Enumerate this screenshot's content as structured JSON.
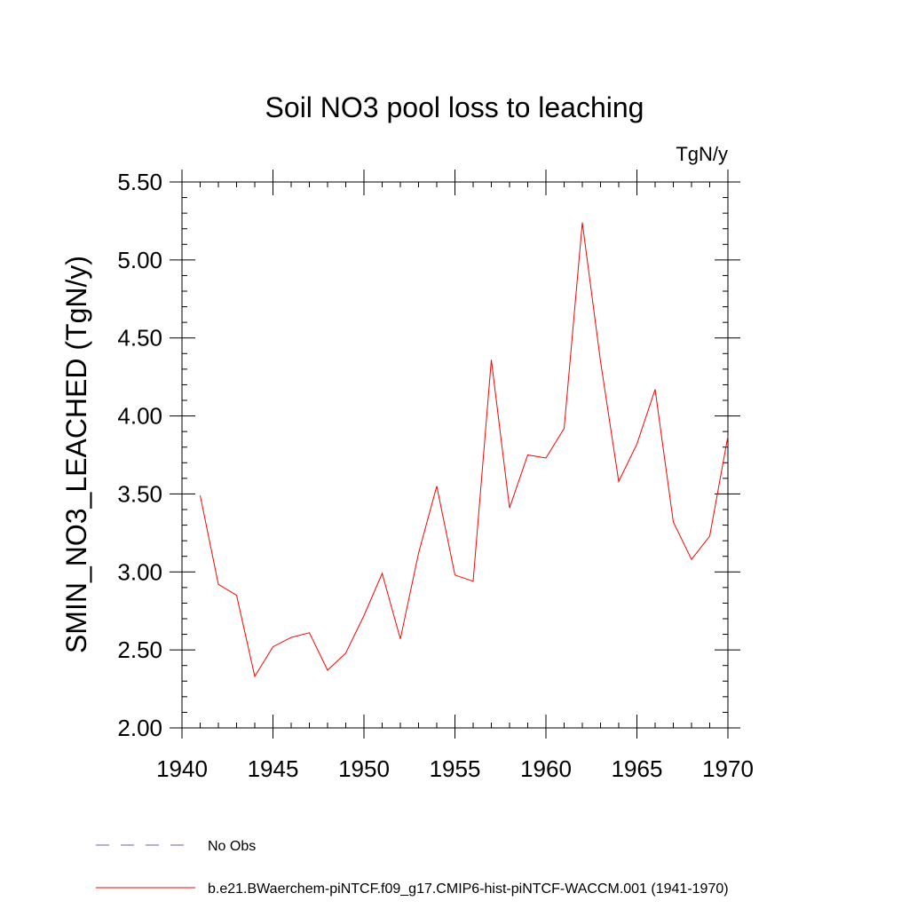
{
  "chart_data": {
    "type": "line",
    "title": "Soil NO3 pool loss to leaching",
    "units_label": "TgN/y",
    "xlabel": "",
    "ylabel": "SMIN_NO3_LEACHED  (TgN/y)",
    "xlim": [
      1940,
      1970
    ],
    "ylim": [
      2.0,
      5.5
    ],
    "x_ticks": [
      1940,
      1945,
      1950,
      1955,
      1960,
      1965,
      1970
    ],
    "y_ticks": [
      "2.00",
      "2.50",
      "3.00",
      "3.50",
      "4.00",
      "4.50",
      "5.00",
      "5.50"
    ],
    "grid": false,
    "legend_position": "bottom-left",
    "series": [
      {
        "name": "b.e21.BWaerchem-piNTCF.f09_g17.CMIP6-hist-piNTCF-WACCM.001 (1941-1970)",
        "color": "#ff0000",
        "style": "solid",
        "x": [
          1941,
          1942,
          1943,
          1944,
          1945,
          1946,
          1947,
          1948,
          1949,
          1950,
          1951,
          1952,
          1953,
          1954,
          1955,
          1956,
          1957,
          1958,
          1959,
          1960,
          1961,
          1962,
          1963,
          1964,
          1965,
          1966,
          1967,
          1968,
          1969,
          1970
        ],
        "y": [
          3.49,
          2.92,
          2.85,
          2.33,
          2.52,
          2.58,
          2.61,
          2.37,
          2.48,
          2.72,
          2.99,
          2.57,
          3.12,
          3.55,
          2.98,
          2.94,
          4.36,
          3.41,
          3.75,
          3.73,
          3.92,
          5.24,
          4.35,
          3.58,
          3.82,
          4.17,
          3.32,
          3.08,
          3.23,
          3.87
        ]
      }
    ],
    "legend": [
      {
        "label": "No Obs",
        "color": "#6666aa",
        "style": "dashed"
      },
      {
        "label": "b.e21.BWaerchem-piNTCF.f09_g17.CMIP6-hist-piNTCF-WACCM.001 (1941-1970)",
        "color": "#ff0000",
        "style": "solid"
      }
    ]
  }
}
